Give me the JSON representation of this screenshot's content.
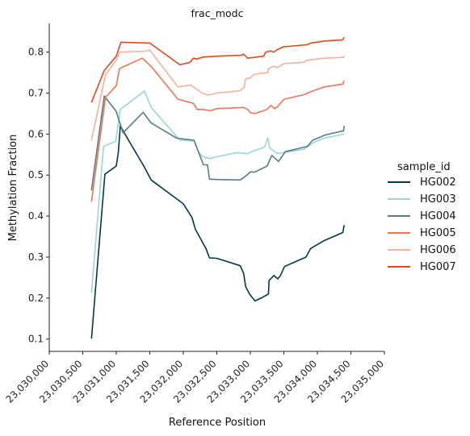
{
  "chart_data": {
    "type": "line",
    "title": "frac_modc",
    "xlabel": "Reference Position",
    "ylabel": "Methylation Fraction",
    "xlim": [
      23030000,
      23035000
    ],
    "ylim": [
      0.07,
      0.87
    ],
    "x_ticks": [
      23030000,
      23030500,
      23031000,
      23031500,
      23032000,
      23032500,
      23033000,
      23033500,
      23034000,
      23034500,
      23035000
    ],
    "x_tick_labels": [
      "23,030,000",
      "23,030,500",
      "23,031,000",
      "23,031,500",
      "23,032,000",
      "23,032,500",
      "23,033,000",
      "23,033,500",
      "23,034,000",
      "23,034,500",
      "23,035,000"
    ],
    "y_ticks": [
      0.1,
      0.2,
      0.3,
      0.4,
      0.5,
      0.6,
      0.7,
      0.8
    ],
    "y_tick_labels": [
      "0.1",
      "0.2",
      "0.3",
      "0.4",
      "0.5",
      "0.6",
      "0.7",
      "0.8"
    ],
    "grid": false,
    "legend": {
      "title": "sample_id",
      "placement": "right"
    },
    "series": [
      {
        "name": "HG002",
        "color": "#003945",
        "points": [
          [
            23030630,
            0.101
          ],
          [
            23030830,
            0.502
          ],
          [
            23031000,
            0.522
          ],
          [
            23031030,
            0.555
          ],
          [
            23031060,
            0.62
          ],
          [
            23031200,
            0.58
          ],
          [
            23031400,
            0.525
          ],
          [
            23031520,
            0.488
          ],
          [
            23032000,
            0.43
          ],
          [
            23032130,
            0.396
          ],
          [
            23032180,
            0.368
          ],
          [
            23032340,
            0.32
          ],
          [
            23032390,
            0.298
          ],
          [
            23032500,
            0.297
          ],
          [
            23032850,
            0.279
          ],
          [
            23032900,
            0.26
          ],
          [
            23032930,
            0.228
          ],
          [
            23032990,
            0.209
          ],
          [
            23033070,
            0.193
          ],
          [
            23033160,
            0.2
          ],
          [
            23033270,
            0.21
          ],
          [
            23033280,
            0.243
          ],
          [
            23033350,
            0.255
          ],
          [
            23033410,
            0.247
          ],
          [
            23033450,
            0.255
          ],
          [
            23033510,
            0.277
          ],
          [
            23033830,
            0.3
          ],
          [
            23033900,
            0.321
          ],
          [
            23034100,
            0.34
          ],
          [
            23034380,
            0.36
          ],
          [
            23034400,
            0.378
          ]
        ]
      },
      {
        "name": "HG003",
        "color": "#96d7d6",
        "points": [
          [
            23030630,
            0.213
          ],
          [
            23030810,
            0.57
          ],
          [
            23030990,
            0.582
          ],
          [
            23031060,
            0.66
          ],
          [
            23031420,
            0.705
          ],
          [
            23031520,
            0.665
          ],
          [
            23031950,
            0.585
          ],
          [
            23032160,
            0.583
          ],
          [
            23032230,
            0.555
          ],
          [
            23032290,
            0.545
          ],
          [
            23032400,
            0.54
          ],
          [
            23032450,
            0.543
          ],
          [
            23032800,
            0.555
          ],
          [
            23032960,
            0.552
          ],
          [
            23033020,
            0.557
          ],
          [
            23033210,
            0.568
          ],
          [
            23033260,
            0.59
          ],
          [
            23033290,
            0.566
          ],
          [
            23033400,
            0.553
          ],
          [
            23033500,
            0.555
          ],
          [
            23033800,
            0.563
          ],
          [
            23033950,
            0.58
          ],
          [
            23034100,
            0.59
          ],
          [
            23034400,
            0.6
          ]
        ]
      },
      {
        "name": "HG004",
        "color": "#567c86",
        "points": [
          [
            23030630,
            0.463
          ],
          [
            23030820,
            0.693
          ],
          [
            23031000,
            0.655
          ],
          [
            23031100,
            0.603
          ],
          [
            23031400,
            0.653
          ],
          [
            23031520,
            0.627
          ],
          [
            23031900,
            0.59
          ],
          [
            23032160,
            0.585
          ],
          [
            23032230,
            0.555
          ],
          [
            23032300,
            0.525
          ],
          [
            23032360,
            0.525
          ],
          [
            23032390,
            0.49
          ],
          [
            23032530,
            0.489
          ],
          [
            23032850,
            0.488
          ],
          [
            23032950,
            0.5
          ],
          [
            23033000,
            0.508
          ],
          [
            23033050,
            0.507
          ],
          [
            23033100,
            0.51
          ],
          [
            23033250,
            0.522
          ],
          [
            23033320,
            0.548
          ],
          [
            23033420,
            0.533
          ],
          [
            23033520,
            0.557
          ],
          [
            23033850,
            0.57
          ],
          [
            23033930,
            0.585
          ],
          [
            23034120,
            0.598
          ],
          [
            23034390,
            0.608
          ],
          [
            23034400,
            0.62
          ]
        ]
      },
      {
        "name": "HG005",
        "color": "#ec7558",
        "points": [
          [
            23030630,
            0.435
          ],
          [
            23030840,
            0.69
          ],
          [
            23030900,
            0.7
          ],
          [
            23031000,
            0.718
          ],
          [
            23031050,
            0.76
          ],
          [
            23031390,
            0.785
          ],
          [
            23031530,
            0.763
          ],
          [
            23031920,
            0.685
          ],
          [
            23032150,
            0.675
          ],
          [
            23032210,
            0.66
          ],
          [
            23032300,
            0.66
          ],
          [
            23032400,
            0.657
          ],
          [
            23032500,
            0.662
          ],
          [
            23032900,
            0.665
          ],
          [
            23032960,
            0.66
          ],
          [
            23033000,
            0.652
          ],
          [
            23033070,
            0.65
          ],
          [
            23033200,
            0.657
          ],
          [
            23033260,
            0.662
          ],
          [
            23033310,
            0.67
          ],
          [
            23033360,
            0.662
          ],
          [
            23033410,
            0.667
          ],
          [
            23033500,
            0.685
          ],
          [
            23033800,
            0.696
          ],
          [
            23033910,
            0.704
          ],
          [
            23034100,
            0.715
          ],
          [
            23034380,
            0.722
          ],
          [
            23034400,
            0.73
          ]
        ]
      },
      {
        "name": "HG006",
        "color": "#f6b19b",
        "points": [
          [
            23030630,
            0.585
          ],
          [
            23030840,
            0.745
          ],
          [
            23031000,
            0.78
          ],
          [
            23031050,
            0.8
          ],
          [
            23031420,
            0.802
          ],
          [
            23031500,
            0.805
          ],
          [
            23031920,
            0.715
          ],
          [
            23032110,
            0.72
          ],
          [
            23032280,
            0.7
          ],
          [
            23032370,
            0.695
          ],
          [
            23032500,
            0.7
          ],
          [
            23032850,
            0.706
          ],
          [
            23032910,
            0.715
          ],
          [
            23032930,
            0.735
          ],
          [
            23033000,
            0.737
          ],
          [
            23033050,
            0.745
          ],
          [
            23033150,
            0.748
          ],
          [
            23033260,
            0.75
          ],
          [
            23033270,
            0.76
          ],
          [
            23033350,
            0.765
          ],
          [
            23033410,
            0.762
          ],
          [
            23033450,
            0.767
          ],
          [
            23033500,
            0.772
          ],
          [
            23033800,
            0.775
          ],
          [
            23033840,
            0.78
          ],
          [
            23034100,
            0.785
          ],
          [
            23034390,
            0.787
          ],
          [
            23034400,
            0.792
          ]
        ]
      },
      {
        "name": "HG007",
        "color": "#e4461b",
        "points": [
          [
            23030630,
            0.677
          ],
          [
            23030820,
            0.755
          ],
          [
            23031000,
            0.79
          ],
          [
            23031070,
            0.824
          ],
          [
            23031500,
            0.822
          ],
          [
            23031950,
            0.769
          ],
          [
            23032100,
            0.775
          ],
          [
            23032150,
            0.785
          ],
          [
            23032200,
            0.783
          ],
          [
            23032300,
            0.788
          ],
          [
            23032500,
            0.79
          ],
          [
            23032850,
            0.792
          ],
          [
            23032900,
            0.795
          ],
          [
            23032960,
            0.785
          ],
          [
            23033200,
            0.79
          ],
          [
            23033230,
            0.8
          ],
          [
            23033300,
            0.803
          ],
          [
            23033350,
            0.8
          ],
          [
            23033400,
            0.806
          ],
          [
            23033500,
            0.813
          ],
          [
            23033850,
            0.818
          ],
          [
            23033900,
            0.822
          ],
          [
            23034100,
            0.827
          ],
          [
            23034380,
            0.83
          ],
          [
            23034400,
            0.836
          ]
        ]
      }
    ]
  }
}
